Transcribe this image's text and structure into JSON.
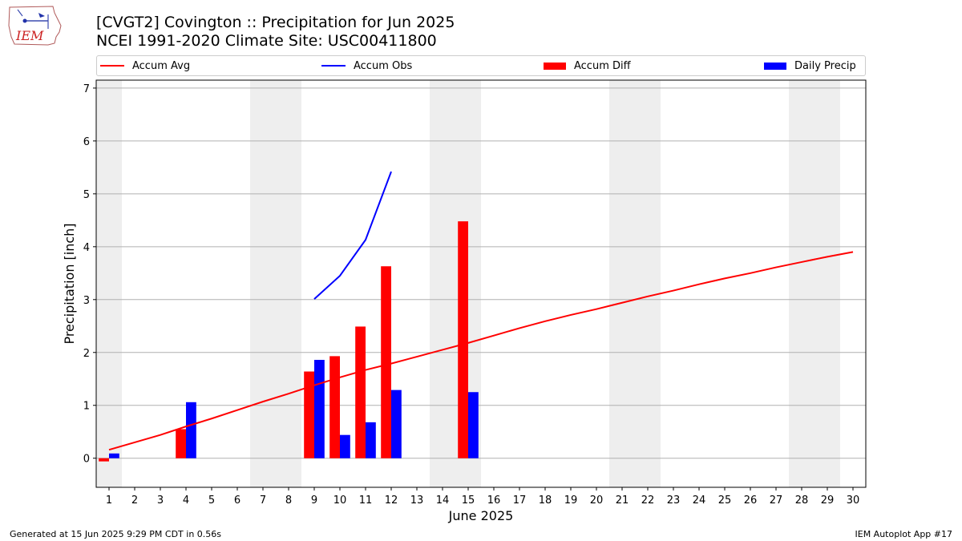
{
  "header": {
    "logo_text": "IEM",
    "title_line1": "[CVGT2] Covington :: Precipitation for Jun 2025",
    "title_line2": "NCEI 1991-2020 Climate Site: USC00411800"
  },
  "legend": {
    "placement": "top, horizontal above plot",
    "items": [
      {
        "label": "Accum Avg",
        "kind": "line",
        "color": "#ff0000"
      },
      {
        "label": "Accum Obs",
        "kind": "line",
        "color": "#0000ff"
      },
      {
        "label": "Accum Diff",
        "kind": "bar",
        "color": "#ff0000"
      },
      {
        "label": "Daily Precip",
        "kind": "bar",
        "color": "#0000ff"
      }
    ]
  },
  "footer": {
    "left": "Generated at 15 Jun 2025 9:29 PM CDT in 0.56s",
    "right": "IEM Autoplot App #17"
  },
  "chart_data": {
    "type": "bar",
    "title": "[CVGT2] Covington :: Precipitation for Jun 2025",
    "subtitle": "NCEI 1991-2020 Climate Site: USC00411800",
    "xlabel": "June 2025",
    "ylabel": "Precipitation [inch]",
    "xlim": [
      0.5,
      30.5
    ],
    "ylim": [
      -0.55,
      7.15
    ],
    "yticks": [
      0,
      1,
      2,
      3,
      4,
      5,
      6,
      7
    ],
    "xticks": [
      1,
      2,
      3,
      4,
      5,
      6,
      7,
      8,
      9,
      10,
      11,
      12,
      13,
      14,
      15,
      16,
      17,
      18,
      19,
      20,
      21,
      22,
      23,
      24,
      25,
      26,
      27,
      28,
      29,
      30
    ],
    "grid": "horizontal",
    "weekend_shading": [
      [
        0.5,
        1.5
      ],
      [
        6.5,
        8.5
      ],
      [
        13.5,
        15.5
      ],
      [
        20.5,
        22.5
      ],
      [
        27.5,
        29.5
      ]
    ],
    "shade_color": "#eeeeee",
    "series": [
      {
        "name": "Accum Avg",
        "kind": "line",
        "color": "#ff0000",
        "x": [
          1,
          2,
          3,
          4,
          5,
          6,
          7,
          8,
          9,
          10,
          11,
          12,
          13,
          14,
          15,
          16,
          17,
          18,
          19,
          20,
          21,
          22,
          23,
          24,
          25,
          26,
          27,
          28,
          29,
          30
        ],
        "values": [
          0.16,
          0.3,
          0.44,
          0.6,
          0.75,
          0.91,
          1.07,
          1.22,
          1.38,
          1.53,
          1.67,
          1.79,
          1.92,
          2.05,
          2.18,
          2.32,
          2.46,
          2.59,
          2.71,
          2.82,
          2.94,
          3.06,
          3.17,
          3.29,
          3.4,
          3.5,
          3.61,
          3.71,
          3.81,
          3.9
        ]
      },
      {
        "name": "Accum Obs",
        "kind": "line",
        "color": "#0000ff",
        "x": [
          9,
          10,
          11,
          12
        ],
        "values": [
          3.01,
          3.45,
          4.13,
          5.42
        ]
      },
      {
        "name": "Accum Diff",
        "kind": "bar",
        "color": "#ff0000",
        "x": [
          1,
          4,
          9,
          10,
          11,
          12,
          15
        ],
        "values": [
          -0.06,
          0.55,
          1.64,
          1.93,
          2.49,
          3.63,
          4.48
        ]
      },
      {
        "name": "Daily Precip",
        "kind": "bar",
        "color": "#0000ff",
        "x": [
          1,
          4,
          9,
          10,
          11,
          12,
          15
        ],
        "values": [
          0.09,
          1.06,
          1.86,
          0.44,
          0.68,
          1.29,
          1.25
        ]
      }
    ]
  }
}
